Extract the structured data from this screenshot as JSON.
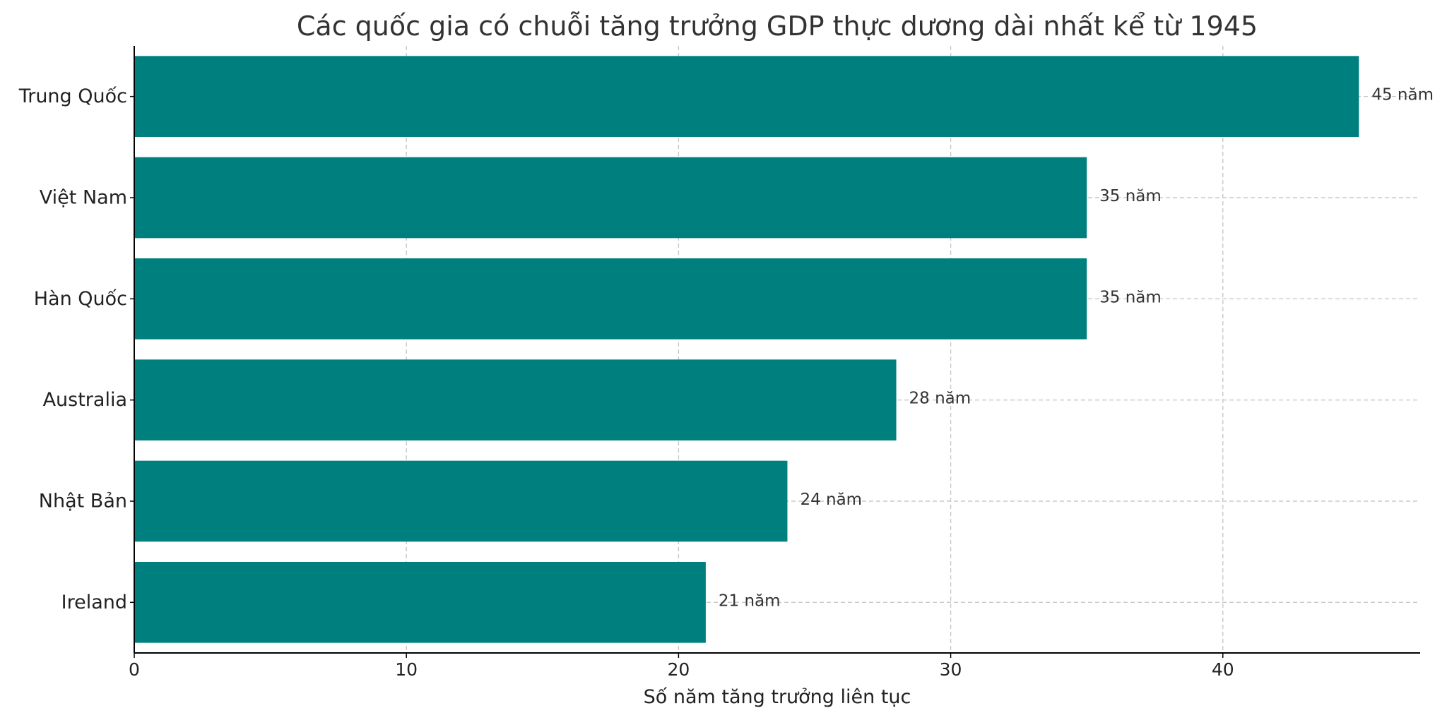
{
  "chart_data": {
    "type": "bar",
    "orientation": "horizontal",
    "title": "Các quốc gia có chuỗi tăng trưởng GDP thực dương dài nhất kể từ 1945",
    "xlabel": "Số năm tăng trưởng liên tục",
    "ylabel": "",
    "categories": [
      "Trung Quốc",
      "Việt Nam",
      "Hàn Quốc",
      "Australia",
      "Nhật Bản",
      "Ireland"
    ],
    "values": [
      45,
      35,
      35,
      28,
      24,
      21
    ],
    "data_labels": [
      "45 năm",
      "35 năm",
      "35 năm",
      "28 năm",
      "24 năm",
      "21 năm"
    ],
    "xlim": [
      0,
      47.25
    ],
    "xticks": [
      0,
      10,
      20,
      30,
      40
    ],
    "xtick_labels": [
      "0",
      "10",
      "20",
      "30",
      "40"
    ],
    "grid": true,
    "bar_color": "#007f7f"
  }
}
